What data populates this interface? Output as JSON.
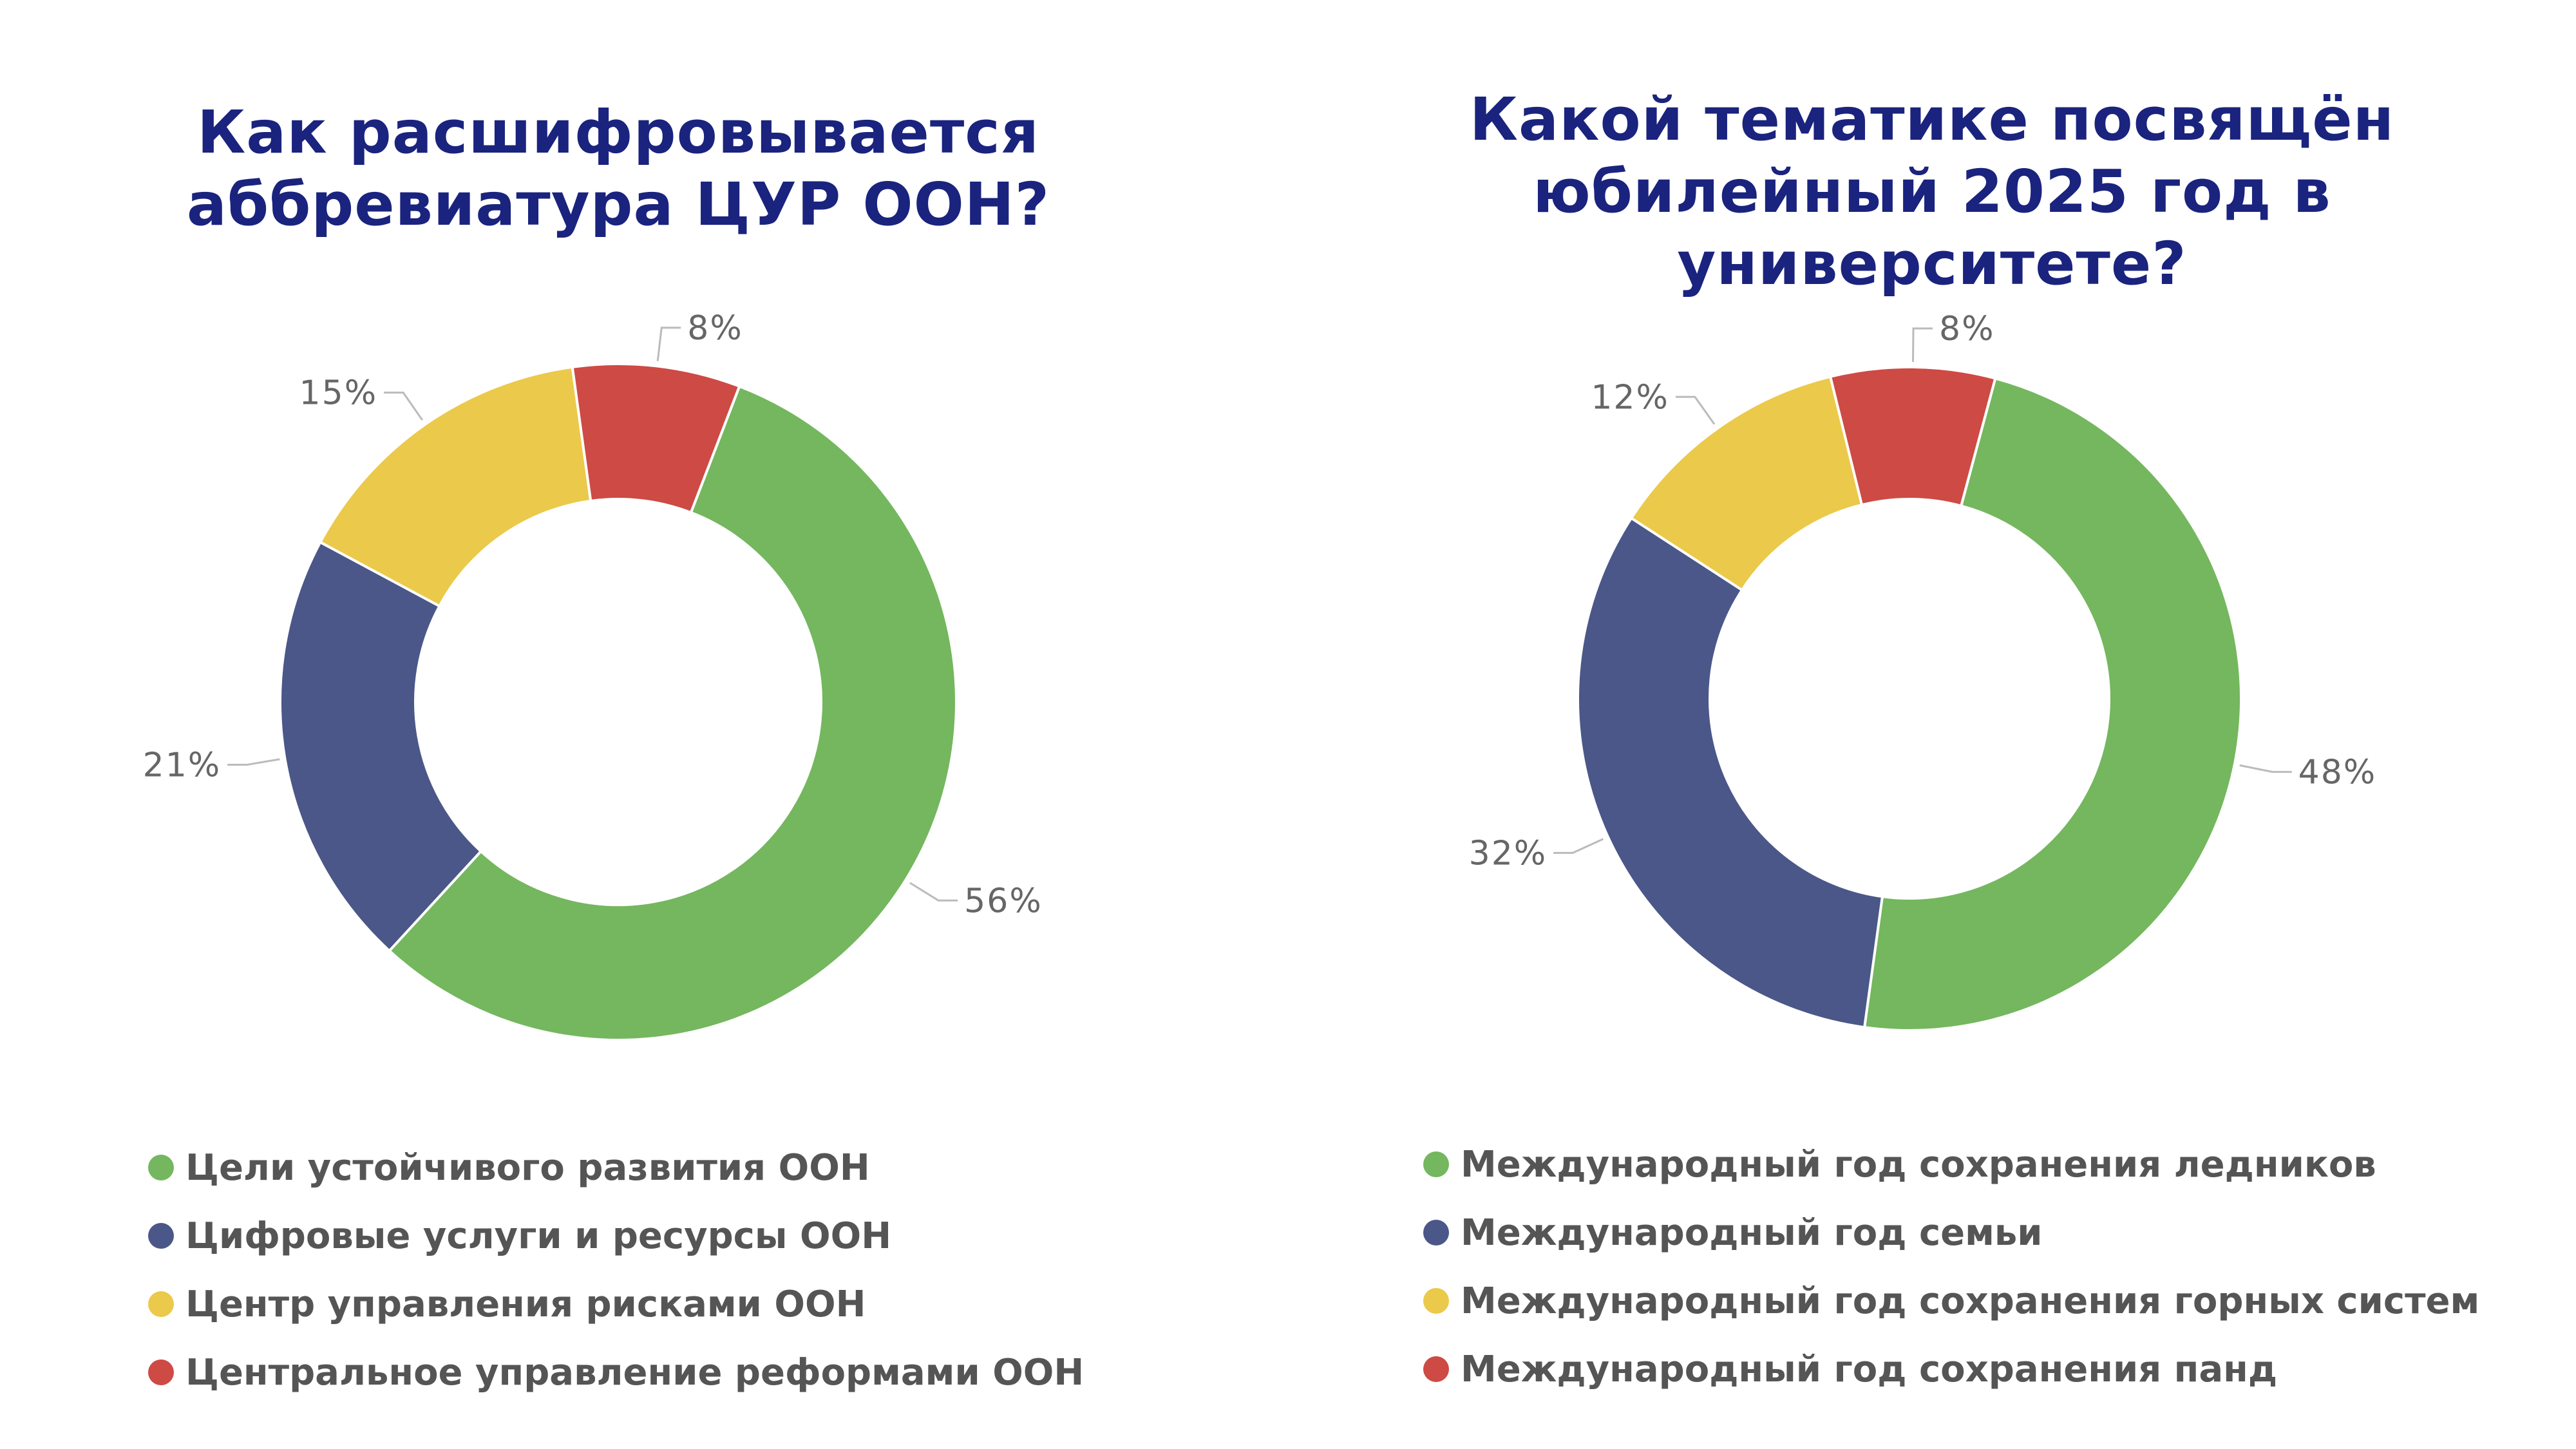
{
  "colors": {
    "green": "#74b75e",
    "navy": "#4a5788",
    "yellow": "#ebc94a",
    "red": "#cd4a45",
    "title": "#1a237e",
    "label": "#666666"
  },
  "chart_data": [
    {
      "type": "pie",
      "subtype": "donut",
      "title": "Как расшифровывается аббревиатура ЦУР ООН?",
      "categories": [
        "Цели устойчивого развития ООН",
        "Цифровые услуги и ресурсы ООН",
        "Центр управления рисками ООН",
        "Центральное управление реформами ООН"
      ],
      "values": [
        56,
        21,
        15,
        8
      ],
      "labels": [
        "56%",
        "21%",
        "15%",
        "8%"
      ],
      "legend_position": "bottom"
    },
    {
      "type": "pie",
      "subtype": "donut",
      "title": "Какой тематике посвящён юбилейный 2025 год в университете?",
      "categories": [
        "Международный год сохранения ледников",
        "Международный год семьи",
        "Международный год сохранения горных систем",
        "Международный год сохранения панд"
      ],
      "values": [
        48,
        32,
        12,
        8
      ],
      "labels": [
        "48%",
        "32%",
        "12%",
        "8%"
      ],
      "legend_position": "bottom"
    }
  ]
}
